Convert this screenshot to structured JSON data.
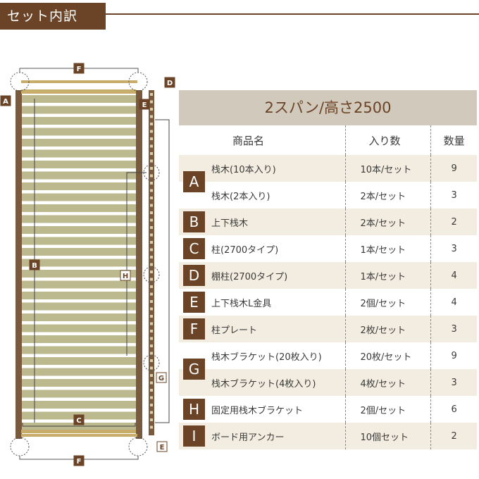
{
  "header": {
    "title": "セット内訳"
  },
  "table": {
    "title": "2スパン/高さ2500",
    "columns": [
      "商品名",
      "入り数",
      "数量"
    ],
    "rows": [
      {
        "badge": "A",
        "name": "栈木(10本入り)",
        "per_set": "10本/セット",
        "qty": "9"
      },
      {
        "badge": "",
        "name": "栈木(2本入り)",
        "per_set": "2本/セット",
        "qty": "3"
      },
      {
        "badge": "B",
        "name": "上下栈木",
        "per_set": "2本/セット",
        "qty": "2"
      },
      {
        "badge": "C",
        "name": "柱(2700タイプ)",
        "per_set": "1本/セット",
        "qty": "3"
      },
      {
        "badge": "D",
        "name": "棚柱(2700タイプ)",
        "per_set": "1本/セット",
        "qty": "4"
      },
      {
        "badge": "E",
        "name": "上下栈木L金具",
        "per_set": "2個/セット",
        "qty": "4"
      },
      {
        "badge": "F",
        "name": "柱プレート",
        "per_set": "2枚/セット",
        "qty": "3"
      },
      {
        "badge": "G",
        "name": "栈木ブラケット(20枚入り)",
        "per_set": "20枚/セット",
        "qty": "9"
      },
      {
        "badge": "",
        "name": "栈木ブラケット(4枚入り)",
        "per_set": "4枚/セット",
        "qty": "3"
      },
      {
        "badge": "H",
        "name": "固定用栈木ブラケット",
        "per_set": "2個/セット",
        "qty": "6"
      },
      {
        "badge": "I",
        "name": "ボード用アンカー",
        "per_set": "10個セット",
        "qty": "2"
      }
    ]
  },
  "diagram": {
    "labels": [
      "A",
      "B",
      "C",
      "D",
      "E",
      "F",
      "G",
      "H",
      "E",
      "F"
    ]
  },
  "colors": {
    "brand": "#6b4326",
    "title_bg": "#d1c9bc",
    "stripe": "#f2ede0",
    "slat": "#bdb98f"
  }
}
